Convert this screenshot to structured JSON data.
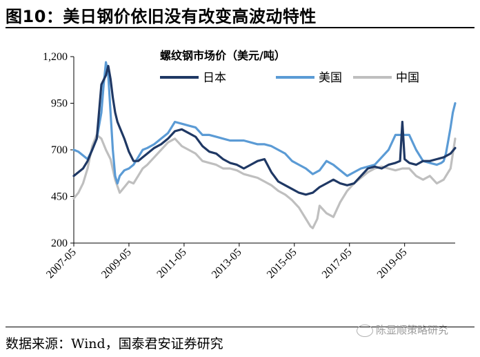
{
  "header": {
    "title": "图10：美日钢价依旧没有改变高波动特性"
  },
  "footer": {
    "source": "数据来源：Wind，国泰君安证券研究"
  },
  "watermark": {
    "text": "陈显顺策略研究"
  },
  "chart_data": {
    "type": "line",
    "legend_title": "螺纹钢市场价（美元/吨）",
    "x_tick_labels": [
      "2007-05",
      "2009-05",
      "2011-05",
      "2013-05",
      "2015-05",
      "2017-05",
      "2019-05"
    ],
    "x_ticks": [
      2007.333,
      2009.333,
      2011.333,
      2013.333,
      2015.333,
      2017.333,
      2019.333
    ],
    "xlim": [
      2007.333,
      2021.167
    ],
    "y_tick_labels": [
      "200",
      "450",
      "700",
      "950",
      "1,200"
    ],
    "y_ticks": [
      200,
      450,
      700,
      950,
      1200
    ],
    "ylim": [
      200,
      1200
    ],
    "legend_position": "top",
    "series": [
      {
        "name": "日本",
        "color": "#1f3864",
        "width": 3.2,
        "x": [
          2007.333,
          2007.5,
          2007.667,
          2007.833,
          2008.0,
          2008.167,
          2008.333,
          2008.5,
          2008.583,
          2008.667,
          2008.75,
          2008.833,
          2008.917,
          2009.0,
          2009.167,
          2009.333,
          2009.5,
          2009.667,
          2009.833,
          2010.0,
          2010.25,
          2010.5,
          2010.75,
          2011.0,
          2011.25,
          2011.5,
          2011.75,
          2012.0,
          2012.25,
          2012.5,
          2012.75,
          2013.0,
          2013.25,
          2013.5,
          2013.75,
          2014.0,
          2014.25,
          2014.5,
          2014.75,
          2015.0,
          2015.25,
          2015.5,
          2015.75,
          2016.0,
          2016.25,
          2016.5,
          2016.75,
          2017.0,
          2017.25,
          2017.5,
          2017.75,
          2018.0,
          2018.25,
          2018.5,
          2018.75,
          2019.0,
          2019.167,
          2019.25,
          2019.333,
          2019.5,
          2019.75,
          2020.0,
          2020.25,
          2020.5,
          2020.75,
          2021.0,
          2021.167
        ],
        "values": [
          560,
          580,
          600,
          640,
          700,
          760,
          1050,
          1100,
          1150,
          1080,
          980,
          900,
          850,
          820,
          760,
          690,
          640,
          640,
          660,
          680,
          710,
          730,
          760,
          800,
          810,
          790,
          770,
          720,
          690,
          680,
          650,
          630,
          620,
          600,
          620,
          640,
          650,
          580,
          530,
          510,
          490,
          470,
          460,
          470,
          500,
          520,
          540,
          520,
          510,
          520,
          560,
          600,
          610,
          600,
          620,
          630,
          640,
          850,
          650,
          630,
          620,
          640,
          640,
          650,
          660,
          680,
          710
        ]
      },
      {
        "name": "美国",
        "color": "#5b9bd5",
        "width": 3.2,
        "x": [
          2007.333,
          2007.5,
          2007.667,
          2007.833,
          2008.0,
          2008.167,
          2008.333,
          2008.417,
          2008.5,
          2008.583,
          2008.667,
          2008.75,
          2008.833,
          2008.917,
          2009.0,
          2009.167,
          2009.333,
          2009.5,
          2009.667,
          2009.833,
          2010.0,
          2010.25,
          2010.5,
          2010.75,
          2011.0,
          2011.25,
          2011.5,
          2011.75,
          2012.0,
          2012.25,
          2012.5,
          2012.75,
          2013.0,
          2013.25,
          2013.5,
          2013.75,
          2014.0,
          2014.25,
          2014.5,
          2014.75,
          2015.0,
          2015.25,
          2015.5,
          2015.75,
          2016.0,
          2016.25,
          2016.5,
          2016.75,
          2017.0,
          2017.25,
          2017.5,
          2017.75,
          2018.0,
          2018.25,
          2018.5,
          2018.75,
          2019.0,
          2019.25,
          2019.5,
          2019.75,
          2020.0,
          2020.25,
          2020.5,
          2020.667,
          2020.75,
          2020.833,
          2020.917,
          2021.0,
          2021.083,
          2021.167
        ],
        "values": [
          700,
          690,
          670,
          650,
          700,
          760,
          900,
          1050,
          1170,
          1100,
          900,
          700,
          560,
          520,
          560,
          590,
          600,
          620,
          660,
          700,
          710,
          730,
          760,
          790,
          850,
          840,
          830,
          820,
          780,
          780,
          770,
          760,
          750,
          750,
          750,
          740,
          730,
          730,
          720,
          700,
          680,
          640,
          620,
          600,
          570,
          590,
          640,
          620,
          590,
          560,
          580,
          600,
          610,
          620,
          660,
          700,
          780,
          780,
          780,
          700,
          640,
          630,
          620,
          630,
          640,
          680,
          750,
          820,
          900,
          950
        ]
      },
      {
        "name": "中国",
        "color": "#bfbfbf",
        "width": 3.2,
        "x": [
          2007.333,
          2007.5,
          2007.667,
          2007.833,
          2008.0,
          2008.167,
          2008.333,
          2008.5,
          2008.667,
          2008.833,
          2009.0,
          2009.167,
          2009.333,
          2009.5,
          2009.667,
          2009.833,
          2010.0,
          2010.25,
          2010.5,
          2010.75,
          2011.0,
          2011.25,
          2011.5,
          2011.75,
          2012.0,
          2012.25,
          2012.5,
          2012.75,
          2013.0,
          2013.25,
          2013.5,
          2013.75,
          2014.0,
          2014.25,
          2014.5,
          2014.75,
          2015.0,
          2015.25,
          2015.5,
          2015.75,
          2015.917,
          2016.0,
          2016.167,
          2016.25,
          2016.5,
          2016.75,
          2017.0,
          2017.25,
          2017.5,
          2017.75,
          2018.0,
          2018.25,
          2018.5,
          2018.75,
          2019.0,
          2019.25,
          2019.5,
          2019.75,
          2020.0,
          2020.25,
          2020.5,
          2020.75,
          2021.0,
          2021.167
        ],
        "values": [
          440,
          470,
          520,
          600,
          720,
          780,
          760,
          700,
          650,
          540,
          470,
          500,
          530,
          520,
          560,
          600,
          620,
          660,
          700,
          740,
          760,
          720,
          700,
          680,
          640,
          630,
          620,
          600,
          600,
          590,
          570,
          560,
          550,
          530,
          510,
          480,
          460,
          430,
          390,
          330,
          290,
          280,
          330,
          400,
          360,
          340,
          420,
          480,
          520,
          550,
          580,
          600,
          610,
          600,
          590,
          600,
          600,
          560,
          540,
          560,
          520,
          540,
          600,
          760
        ]
      }
    ]
  }
}
